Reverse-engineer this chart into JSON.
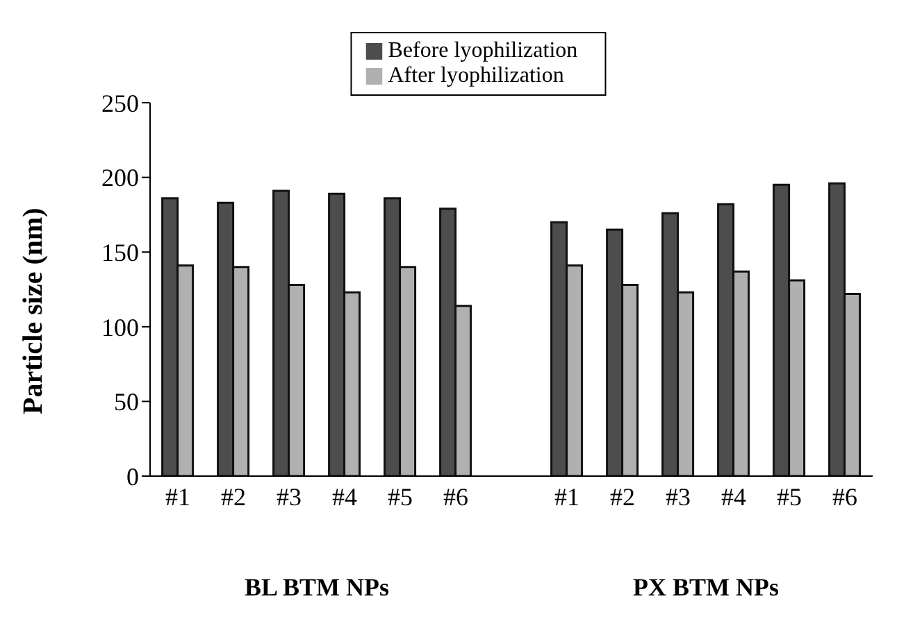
{
  "chart_data": {
    "type": "bar",
    "ylabel": "Particle size (nm)",
    "categories": [
      "#1",
      "#2",
      "#3",
      "#4",
      "#5",
      "#6",
      null,
      "#1",
      "#2",
      "#3",
      "#4",
      "#5",
      "#6"
    ],
    "series": [
      {
        "name": "Before lyophilization",
        "color": "#4d4d4d",
        "values": [
          186,
          183,
          191,
          189,
          186,
          179,
          null,
          170,
          165,
          176,
          182,
          195,
          196
        ]
      },
      {
        "name": "After lyophilization",
        "color": "#b0b0b0",
        "values": [
          141,
          140,
          128,
          123,
          140,
          114,
          null,
          141,
          128,
          123,
          137,
          131,
          122
        ]
      }
    ],
    "ylim": [
      0,
      250
    ],
    "yticks": [
      0,
      50,
      100,
      150,
      200,
      250
    ],
    "legend": "top",
    "annotations": [
      "BL BTM NPs",
      "PX BTM NPs"
    ]
  }
}
